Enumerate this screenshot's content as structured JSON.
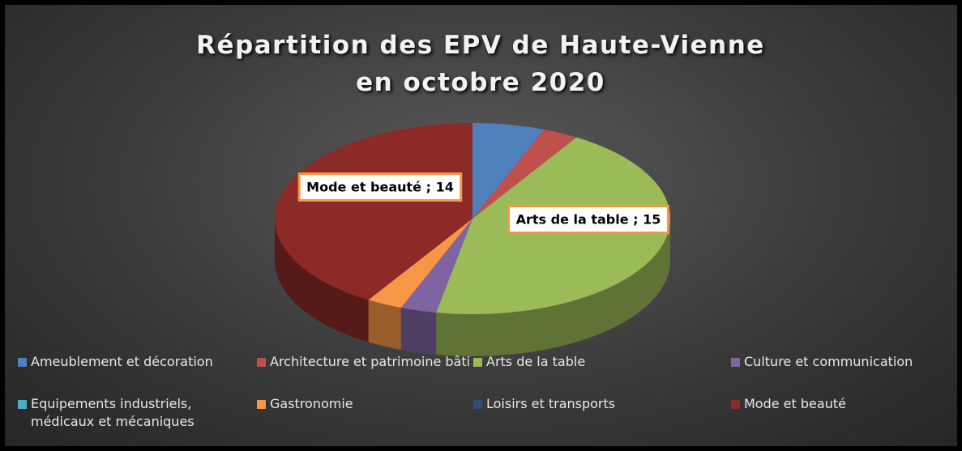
{
  "chart_data": {
    "type": "pie3d",
    "title": "Répartition des EPV de Haute-Vienne",
    "subtitle": "en octobre 2020",
    "categories": [
      "Ameublement et décoration",
      "Architecture et patrimoine bâti",
      "Arts de la table",
      "Culture et communication",
      "Equipements industriels, médicaux et mécaniques",
      "Gastronomie",
      "Loisirs et transports",
      "Mode et beauté"
    ],
    "values": [
      2,
      1,
      15,
      1,
      0,
      1,
      0,
      14
    ],
    "value_labels": [
      null,
      null,
      "Arts de la table ; 15",
      null,
      null,
      null,
      null,
      "Mode et beauté ; 14"
    ],
    "colors": [
      "#4f81bd",
      "#c0504d",
      "#9bbb59",
      "#8064a2",
      "#4bacc6",
      "#f79646",
      "#2c4d75",
      "#8b2a27"
    ],
    "legend": "bottom"
  }
}
